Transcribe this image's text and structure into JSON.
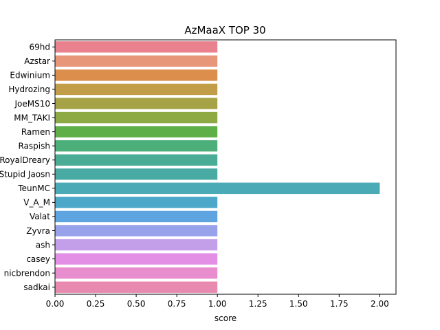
{
  "chart_data": {
    "type": "bar",
    "orientation": "horizontal",
    "title": "AzMaaX TOP 30",
    "xlabel": "score",
    "ylabel": "",
    "xlim": [
      0,
      2.1
    ],
    "xticks": [
      0.0,
      0.25,
      0.5,
      0.75,
      1.0,
      1.25,
      1.5,
      1.75,
      2.0
    ],
    "xtick_labels": [
      "0.00",
      "0.25",
      "0.50",
      "0.75",
      "1.00",
      "1.25",
      "1.50",
      "1.75",
      "2.00"
    ],
    "categories": [
      "69hd",
      "Azstar",
      "Edwinium",
      "Hydrozing",
      "JoeMS10",
      "MM_TAKI",
      "Ramen",
      "Raspish",
      "RoyalDreary",
      "Stupid Jaosn",
      "TeunMC",
      "V_A_M",
      "Valat",
      "Zyvra",
      "ash",
      "casey",
      "nicbrendon",
      "sadkai"
    ],
    "values": [
      1,
      1,
      1,
      1,
      1,
      1,
      1,
      1,
      1,
      1,
      2,
      1,
      1,
      1,
      1,
      1,
      1,
      1
    ],
    "colors": [
      "#e9818e",
      "#e8967a",
      "#dc8e4c",
      "#c29d48",
      "#a5a346",
      "#8eaa45",
      "#5eaf48",
      "#4caf7a",
      "#4aac94",
      "#49aaa4",
      "#4aaab5",
      "#4ba8c9",
      "#5ea4e0",
      "#98a2eb",
      "#c39ee9",
      "#e28fe5",
      "#e88dcd",
      "#e88ab0"
    ],
    "grid": false,
    "legend": "none"
  }
}
